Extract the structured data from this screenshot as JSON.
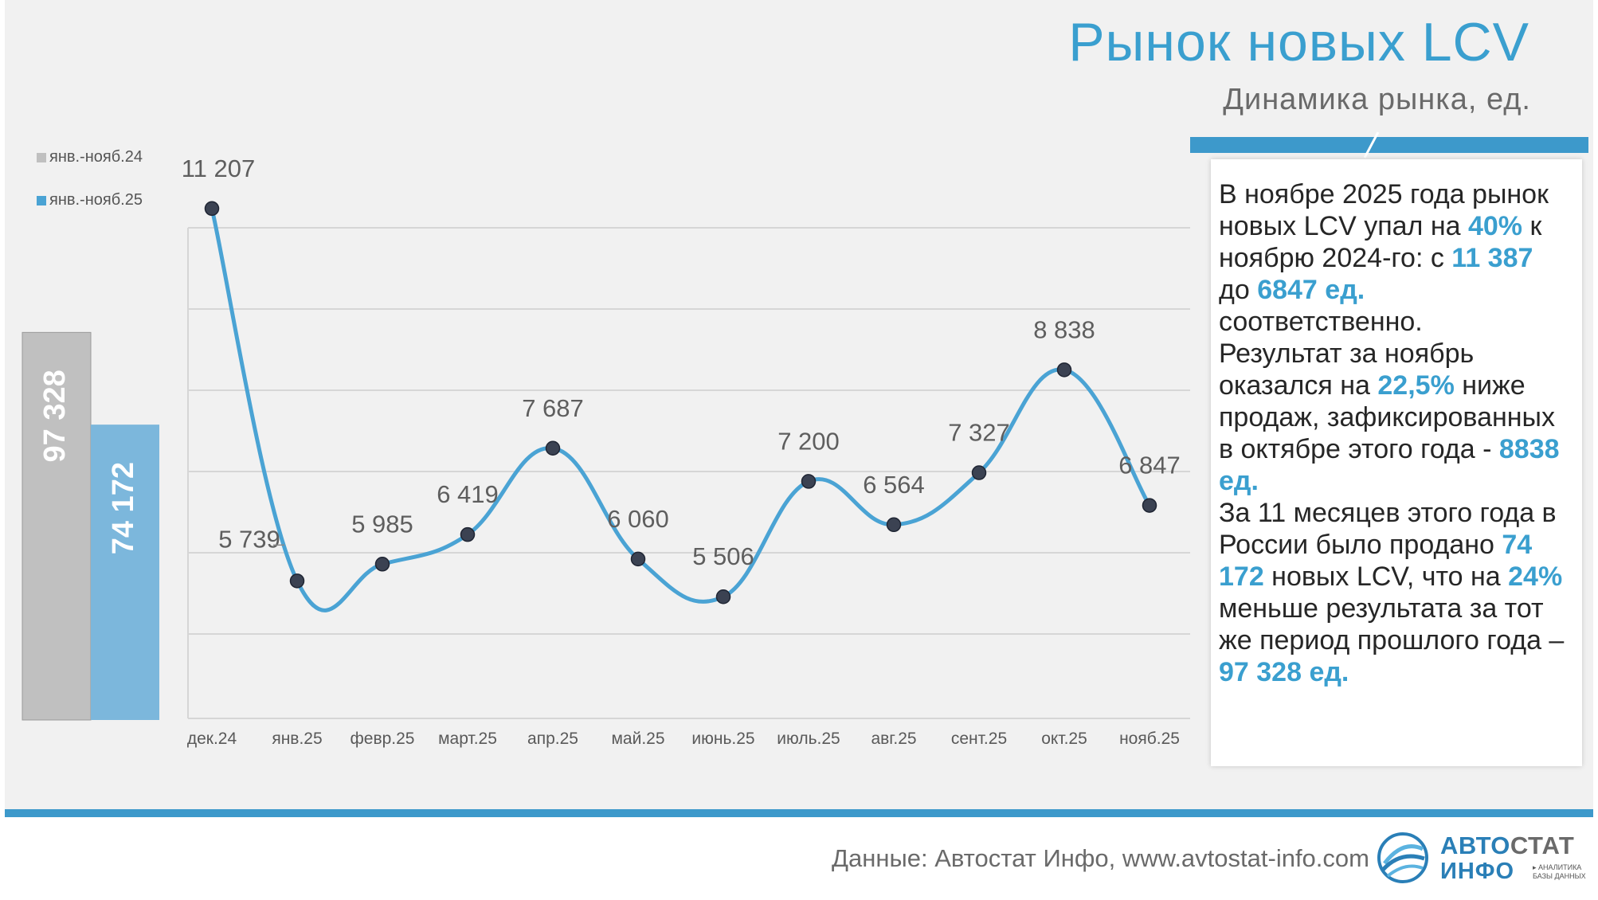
{
  "header": {
    "title": "Рынок новых LCV",
    "subtitle": "Динамика рынка, ед."
  },
  "legend": [
    {
      "label": "янв.-нояб.24",
      "color": "#c0c0c0"
    },
    {
      "label": "янв.-нояб.25",
      "color": "#4aa3d4"
    }
  ],
  "chart_data": [
    {
      "type": "bar",
      "title": "",
      "categories": [
        "янв.-нояб.24",
        "янв.-нояб.25"
      ],
      "values": [
        97328,
        74172
      ],
      "labels": [
        "97 328",
        "74 172"
      ],
      "colors": [
        "#c0c0c0",
        "#7cb7dc"
      ],
      "ylim": [
        0,
        130000
      ]
    },
    {
      "type": "line",
      "title": "",
      "categories": [
        "дек.24",
        "янв.25",
        "февр.25",
        "март.25",
        "апр.25",
        "май.25",
        "июнь.25",
        "июль.25",
        "авг.25",
        "сент.25",
        "окт.25",
        "нояб.25"
      ],
      "values": [
        11207,
        5739,
        5985,
        6419,
        7687,
        6060,
        5506,
        7200,
        6564,
        7327,
        8838,
        6847
      ],
      "labels": [
        "11 207",
        "5 739",
        "5 985",
        "6 419",
        "7 687",
        "6 060",
        "5 506",
        "7 200",
        "6 564",
        "7 327",
        "8 838",
        "6 847"
      ],
      "line_color": "#4aa3d4",
      "marker_color": "#3b4252",
      "grid": true
    }
  ],
  "textbox": {
    "segments": [
      {
        "text": "В ноябре 2025 года рынок новых LCV упал на ",
        "hl": false
      },
      {
        "text": "40%",
        "hl": true
      },
      {
        "text": " к ноябрю 2024-го: с ",
        "hl": false
      },
      {
        "text": "11 387",
        "hl": true
      },
      {
        "text": " до ",
        "hl": false
      },
      {
        "text": "6847 ед.",
        "hl": true
      },
      {
        "text": " соответственно.",
        "hl": false
      },
      {
        "br": true
      },
      {
        "text": "Результат за ноябрь оказался на ",
        "hl": false
      },
      {
        "text": "22,5%",
        "hl": true
      },
      {
        "text": " ниже продаж, зафиксированных в октябре этого года  - ",
        "hl": false
      },
      {
        "text": "8838 ед.",
        "hl": true
      },
      {
        "br": true
      },
      {
        "text": "За 11 месяцев этого года в России было продано ",
        "hl": false
      },
      {
        "text": "74 172",
        "hl": true
      },
      {
        "text": " новых LCV, что на ",
        "hl": false
      },
      {
        "text": "24%",
        "hl": true
      },
      {
        "text": " меньше результата за тот же период прошлого года – ",
        "hl": false
      },
      {
        "text": "97 328 ед.",
        "hl": true
      }
    ]
  },
  "footer": {
    "source": "Данные: Автостат Инфо, www.avtostat-info.com",
    "logo_avto": "АВТО",
    "logo_stat": "СТАТ",
    "logo_info": "ИНФО",
    "logo_tag": "▸ АНАЛИТИКА БАЗЫ ДАННЫХ"
  }
}
